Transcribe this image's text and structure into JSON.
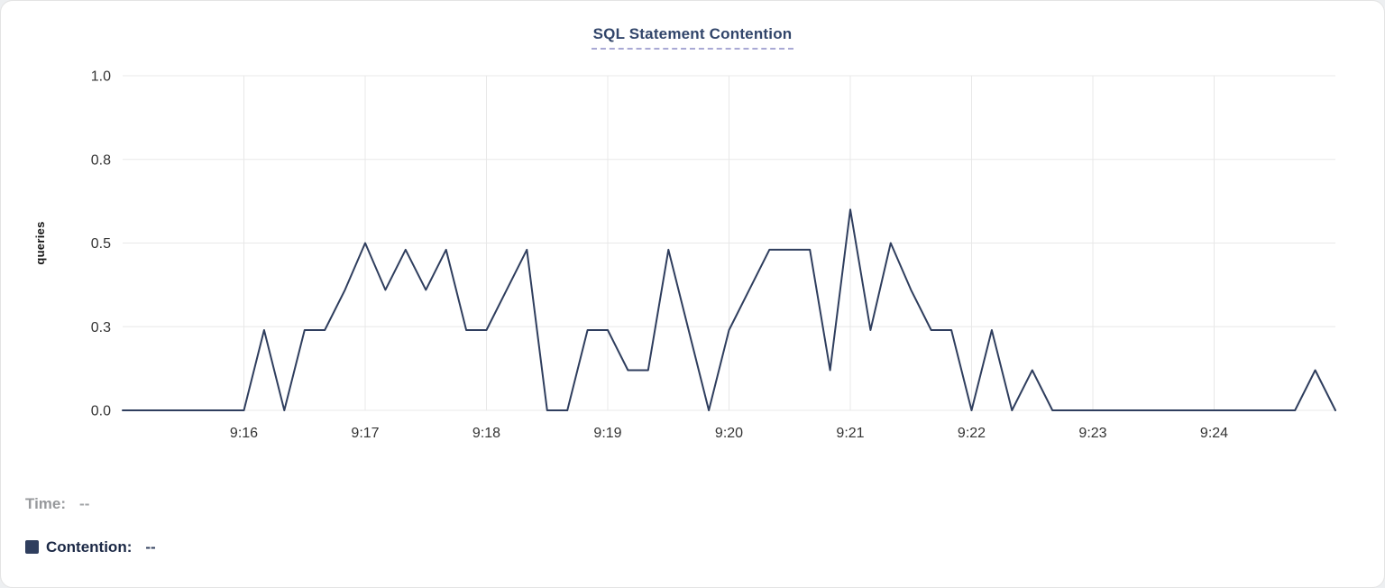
{
  "chart_data": {
    "type": "line",
    "title": "SQL Statement Contention",
    "xlabel": "",
    "ylabel": "queries",
    "ylim": [
      0,
      1.0
    ],
    "x_range_minutes": [
      0,
      10
    ],
    "grid": true,
    "grid_color": "#e8e8e8",
    "legend_position": "bottom-left",
    "y_ticks": [
      {
        "value": 0,
        "label": "0.0"
      },
      {
        "value": 0.25,
        "label": "0.3"
      },
      {
        "value": 0.5,
        "label": "0.5"
      },
      {
        "value": 0.75,
        "label": "0.8"
      },
      {
        "value": 1.0,
        "label": "1.0"
      }
    ],
    "x_ticks": [
      {
        "minute": 1,
        "label": "9:16"
      },
      {
        "minute": 2,
        "label": "9:17"
      },
      {
        "minute": 3,
        "label": "9:18"
      },
      {
        "minute": 4,
        "label": "9:19"
      },
      {
        "minute": 5,
        "label": "9:20"
      },
      {
        "minute": 6,
        "label": "9:21"
      },
      {
        "minute": 7,
        "label": "9:22"
      },
      {
        "minute": 8,
        "label": "9:23"
      },
      {
        "minute": 9,
        "label": "9:24"
      }
    ],
    "series": [
      {
        "name": "Contention",
        "color": "#2f3e5e",
        "times": [
          "9:15:00",
          "9:15:10",
          "9:15:20",
          "9:15:30",
          "9:15:40",
          "9:15:50",
          "9:16:00",
          "9:16:10",
          "9:16:20",
          "9:16:30",
          "9:16:40",
          "9:16:50",
          "9:17:00",
          "9:17:10",
          "9:17:20",
          "9:17:30",
          "9:17:40",
          "9:17:50",
          "9:18:00",
          "9:18:10",
          "9:18:20",
          "9:18:30",
          "9:18:40",
          "9:18:50",
          "9:19:00",
          "9:19:10",
          "9:19:20",
          "9:19:30",
          "9:19:40",
          "9:19:50",
          "9:20:00",
          "9:20:10",
          "9:20:20",
          "9:20:30",
          "9:20:40",
          "9:20:50",
          "9:21:00",
          "9:21:10",
          "9:21:20",
          "9:21:30",
          "9:21:40",
          "9:21:50",
          "9:22:00",
          "9:22:10",
          "9:22:20",
          "9:22:30",
          "9:22:40",
          "9:22:50",
          "9:23:00",
          "9:23:10",
          "9:23:20",
          "9:23:30",
          "9:23:40",
          "9:23:50",
          "9:24:00",
          "9:24:10",
          "9:24:20",
          "9:24:30",
          "9:24:40",
          "9:24:50",
          "9:25:00"
        ],
        "values": [
          0,
          0,
          0,
          0,
          0,
          0,
          0,
          0.24,
          0,
          0.24,
          0.24,
          0.36,
          0.5,
          0.36,
          0.48,
          0.36,
          0.48,
          0.24,
          0.24,
          0.36,
          0.48,
          0,
          0,
          0.24,
          0.24,
          0.12,
          0.12,
          0.48,
          0.24,
          0,
          0.24,
          0.36,
          0.48,
          0.48,
          0.48,
          0.12,
          0.6,
          0.24,
          0.5,
          0.36,
          0.24,
          0.24,
          0,
          0.24,
          0,
          0.12,
          0,
          0,
          0,
          0,
          0,
          0,
          0,
          0,
          0,
          0,
          0,
          0,
          0,
          0.12,
          0
        ]
      }
    ]
  },
  "tooltip": {
    "time_label": "Time:",
    "time_value": "--",
    "contention_label": "Contention:",
    "contention_value": "--"
  },
  "colors": {
    "series_line": "#2f3e5e",
    "title_text": "#31456a",
    "title_underline": "#a9a9d4",
    "grid": "#e8e8e8",
    "tick_text": "#333333",
    "time_label_gray": "#97999c",
    "contention_label_dark": "#1c2946"
  }
}
